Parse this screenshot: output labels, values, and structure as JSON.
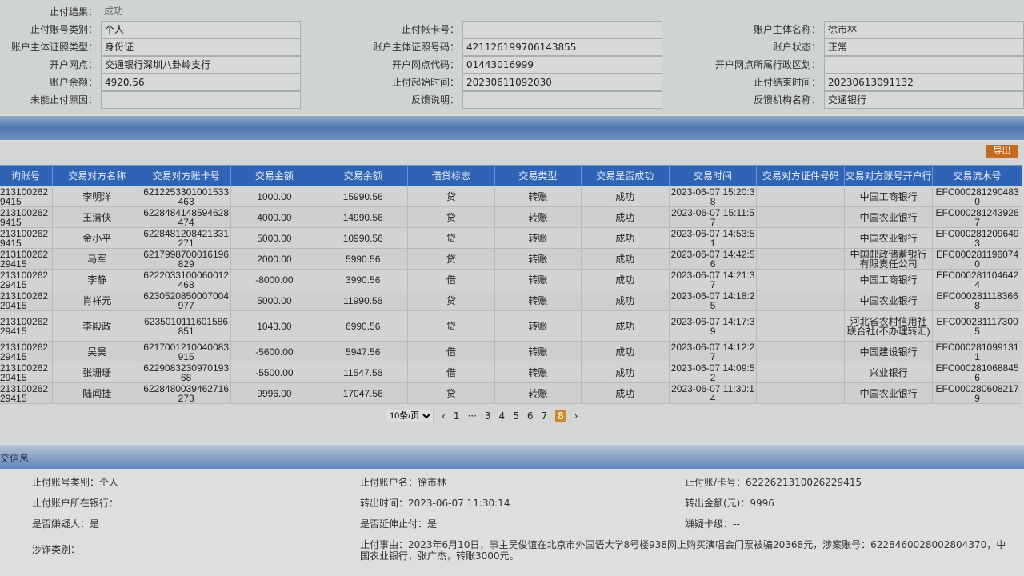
{
  "summary": {
    "result_label": "止付结果：",
    "result_value": "成功",
    "rows": [
      [
        {
          "l": "止付账号类别：",
          "v": "个人"
        },
        {
          "l": "止付帐卡号：",
          "v": ""
        },
        {
          "l": "账户主体名称：",
          "v": "徐市林"
        }
      ],
      [
        {
          "l": "账户主体证照类型：",
          "v": "身份证"
        },
        {
          "l": "账户主体证照号码：",
          "v": "421126199706143855"
        },
        {
          "l": "账户状态：",
          "v": "正常"
        }
      ],
      [
        {
          "l": "开户网点：",
          "v": "交通银行深圳八卦岭支行"
        },
        {
          "l": "开户网点代码：",
          "v": "01443016999"
        },
        {
          "l": "开户网点所属行政区划：",
          "v": ""
        }
      ],
      [
        {
          "l": "账户余额：",
          "v": "4920.56"
        },
        {
          "l": "止付起始时间：",
          "v": "20230611092030"
        },
        {
          "l": "止付结束时间：",
          "v": "20230613091132"
        }
      ],
      [
        {
          "l": "未能止付原因：",
          "v": ""
        },
        {
          "l": "反馈说明：",
          "v": ""
        },
        {
          "l": "反馈机构名称：",
          "v": "交通银行"
        }
      ]
    ]
  },
  "export_label": "导出",
  "table": {
    "headers": [
      "询账号",
      "交易对方名称",
      "交易对方账卡号",
      "交易金额",
      "交易余额",
      "借贷标志",
      "交易类型",
      "交易是否成功",
      "交易时间",
      "交易对方证件号码",
      "交易对方账号开户行",
      "交易流水号"
    ],
    "rows": [
      [
        "213100262 9415",
        "李明洋",
        "6212253301001533463",
        "1000.00",
        "15990.56",
        "贷",
        "转账",
        "成功",
        "2023-06-07 15:20:38",
        "",
        "中国工商银行",
        "EFC0002812904830"
      ],
      [
        "213100262 9415",
        "王清侠",
        "6228484148594628474",
        "4000.00",
        "14990.56",
        "贷",
        "转账",
        "成功",
        "2023-06-07 15:11:57",
        "",
        "中国农业银行",
        "EFC0002812439267"
      ],
      [
        "213100262 9415",
        "金小平",
        "6228481208421331271",
        "5000.00",
        "10990.56",
        "贷",
        "转账",
        "成功",
        "2023-06-07 14:53:51",
        "",
        "中国农业银行",
        "EFC0002812096493"
      ],
      [
        "213100262 29415",
        "马军",
        "6217998700016196829",
        "2000.00",
        "5990.56",
        "贷",
        "转账",
        "成功",
        "2023-06-07 14:42:56",
        "",
        "中国邮政储蓄银行有限责任公司",
        "EFC0002811960740"
      ],
      [
        "213100262 29415",
        "李静",
        "6222033100060012468",
        "-8000.00",
        "3990.56",
        "借",
        "转账",
        "成功",
        "2023-06-07 14:21:37",
        "",
        "中国工商银行",
        "EFC0002811046424"
      ],
      [
        "213100262 29415",
        "肖祥元",
        "6230520850007004977",
        "5000.00",
        "11990.56",
        "贷",
        "转账",
        "成功",
        "2023-06-07 14:18:25",
        "",
        "中国农业银行",
        "EFC0002811183668"
      ],
      [
        "213100262 29415",
        "李殿政",
        "6235010111601586851",
        "1043.00",
        "6990.56",
        "贷",
        "转账",
        "成功",
        "2023-06-07 14:17:39",
        "",
        "河北省农村信用社联合社(不办理转汇)",
        "EFC0002811173005"
      ],
      [
        "213100262 29415",
        "吴昊",
        "6217001210040083915",
        "-5600.00",
        "5947.56",
        "借",
        "转账",
        "成功",
        "2023-06-07 14:12:27",
        "",
        "中国建设银行",
        "EFC0002810991311"
      ],
      [
        "213100262 29415",
        "张珊珊",
        "622908323097019368",
        "-5500.00",
        "11547.56",
        "借",
        "转账",
        "成功",
        "2023-06-07 14:09:52",
        "",
        "兴业银行",
        "EFC0002810688456"
      ],
      [
        "213100262 29415",
        "陆闻捷",
        "6228480039462716273",
        "9996.00",
        "17047.56",
        "贷",
        "转账",
        "成功",
        "2023-06-07 11:30:14",
        "",
        "中国农业银行",
        "EFC0002806082179"
      ]
    ]
  },
  "pager": {
    "size": "10条/页",
    "prev": "‹",
    "next": "›",
    "pages": [
      "1",
      "···",
      "3",
      "4",
      "5",
      "6",
      "7",
      "8"
    ],
    "current": "8"
  },
  "info": {
    "section_title": "交信息",
    "items": [
      "止付账号类别：个人",
      "止付账户名：徐市林",
      "止付账/卡号：6222621310026229415",
      "止付账户所在银行：",
      "转出时间：2023-06-07 11:30:14",
      "转出金额(元)：9996",
      "是否嫌疑人：是",
      "是否延伸止付：是",
      "嫌疑卡级：--"
    ],
    "fraud_label": "涉诈类别：",
    "reason": "止付事由：2023年6月10日，事主吴俊谊在北京市外国语大学8号楼938网上购买演唱会门票被骗20368元，涉案账号：6228460028002804370，中国农业银行，张广杰，转账3000元。"
  },
  "colors": {
    "header_blue": "#2f63b6",
    "accent_orange": "#d08a2c"
  }
}
